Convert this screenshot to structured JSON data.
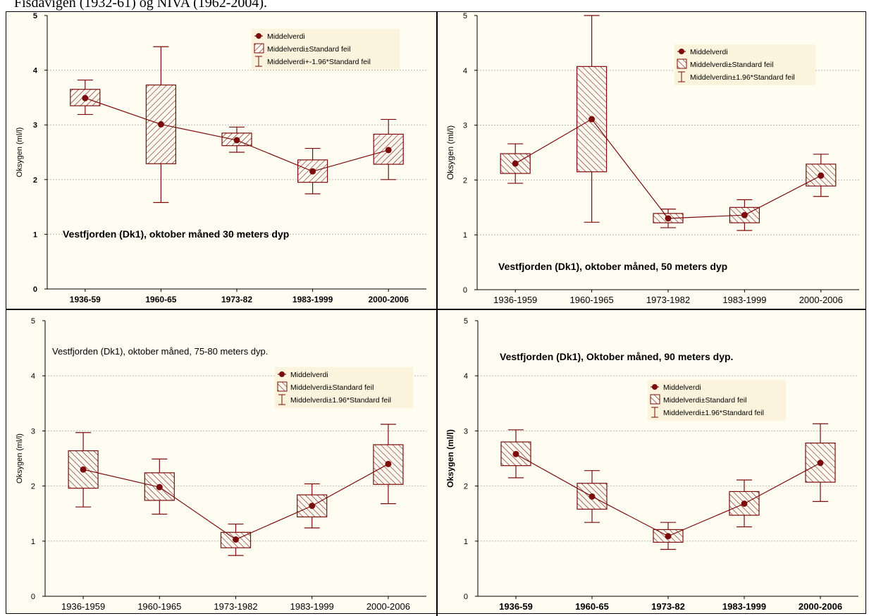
{
  "caption": "Fisdavigen (1932-61) og NIVA (1962-2004).",
  "colors": {
    "series": "#7a0c0c",
    "grid": "#b8b8b8",
    "panel_bg": "#fffdf2",
    "legend_bg": "#fbf3dc"
  },
  "chart_data": [
    {
      "type": "box",
      "title": "Vestfjorden (Dk1), oktober måned 30 meters dyp",
      "title_bold": true,
      "ylabel": "Oksygen (ml/l)",
      "ylim": [
        0,
        5
      ],
      "yticks": [
        "0",
        "1",
        "2",
        "3",
        "4",
        "5"
      ],
      "categories": [
        "1936-59",
        "1960-65",
        "1973-82",
        "1983-1999",
        "2000-2006"
      ],
      "tick_bold": true,
      "legend": [
        "Middelverdi",
        "Middelverdi±Standard feil",
        "Middelverdi+-1.96*Standard feil"
      ],
      "mean": [
        3.49,
        3.01,
        2.72,
        2.15,
        2.54
      ],
      "se_low": [
        3.35,
        2.29,
        2.62,
        1.95,
        2.28
      ],
      "se_high": [
        3.65,
        3.73,
        2.85,
        2.36,
        2.83
      ],
      "ci_low": [
        3.19,
        1.58,
        2.5,
        1.74,
        2.0
      ],
      "ci_high": [
        3.82,
        4.43,
        2.96,
        2.57,
        3.1
      ],
      "grid": true
    },
    {
      "type": "box",
      "title": "Vestfjorden (Dk1), oktober måned, 50 meters dyp",
      "title_bold": true,
      "ylabel": "Oksygen (ml/l)",
      "ylim": [
        0,
        5
      ],
      "yticks": [
        "0",
        "1",
        "2",
        "3",
        "4",
        "5"
      ],
      "categories": [
        "1936-1959",
        "1960-1965",
        "1973-1982",
        "1983-1999",
        "2000-2006"
      ],
      "tick_bold": false,
      "legend": [
        "Middelverdi",
        "Middelverdi±Standard feil",
        "Middelverdin±1.96*Standard feil"
      ],
      "mean": [
        2.3,
        3.11,
        1.3,
        1.36,
        2.08
      ],
      "se_low": [
        2.12,
        2.15,
        1.22,
        1.22,
        1.89
      ],
      "se_high": [
        2.48,
        4.07,
        1.39,
        1.5,
        2.29
      ],
      "ci_low": [
        1.94,
        1.23,
        1.13,
        1.08,
        1.7
      ],
      "ci_high": [
        2.66,
        5.0,
        1.47,
        1.64,
        2.47
      ],
      "grid": true
    },
    {
      "type": "box",
      "title": "Vestfjorden (Dk1), oktober måned, 75-80 meters dyp.",
      "title_bold": false,
      "ylabel": "Oksygen (ml/l)",
      "ylim": [
        0,
        5
      ],
      "yticks": [
        "0",
        "1",
        "2",
        "3",
        "4",
        "5"
      ],
      "categories": [
        "1936-1959",
        "1960-1965",
        "1973-1982",
        "1983-1999",
        "2000-2006"
      ],
      "tick_bold": false,
      "legend": [
        "Middelverdi",
        "Middelverdi±Standard feil",
        "Middelverdi±1.96*Standard feil"
      ],
      "mean": [
        2.3,
        1.98,
        1.03,
        1.64,
        2.4
      ],
      "se_low": [
        1.96,
        1.74,
        0.88,
        1.44,
        2.03
      ],
      "se_high": [
        2.64,
        2.24,
        1.16,
        1.84,
        2.75
      ],
      "ci_low": [
        1.62,
        1.49,
        0.74,
        1.24,
        1.68
      ],
      "ci_high": [
        2.97,
        2.49,
        1.31,
        2.04,
        3.12
      ],
      "grid": true
    },
    {
      "type": "box",
      "title": "Vestfjorden (Dk1), Oktober måned, 90 meters dyp.",
      "title_bold": true,
      "ylabel": "Oksygen (ml/l)",
      "ylim": [
        0,
        5
      ],
      "yticks": [
        "0",
        "1",
        "2",
        "3",
        "4",
        "5"
      ],
      "categories": [
        "1936-59",
        "1960-65",
        "1973-82",
        "1983-1999",
        "2000-2006"
      ],
      "tick_bold": true,
      "legend": [
        "Middelverdi",
        "Middelverdi±Standard feil",
        "Middelverdi±1.96*Standard feil"
      ],
      "mean": [
        2.58,
        1.81,
        1.09,
        1.68,
        2.42
      ],
      "se_low": [
        2.37,
        1.58,
        0.98,
        1.47,
        2.07
      ],
      "se_high": [
        2.8,
        2.05,
        1.21,
        1.9,
        2.78
      ],
      "ci_low": [
        2.15,
        1.34,
        0.85,
        1.26,
        1.72
      ],
      "ci_high": [
        3.02,
        2.28,
        1.34,
        2.11,
        3.13
      ],
      "grid": true
    }
  ]
}
